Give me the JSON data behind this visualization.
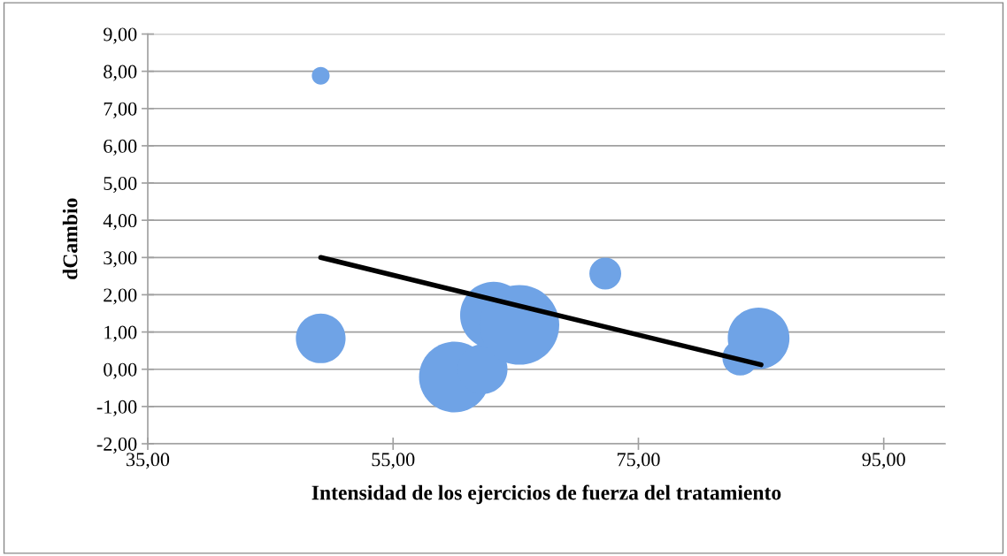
{
  "chart_data": {
    "type": "bubble",
    "xlabel": "Intensidad de los ejercicios de fuerza del tratamiento",
    "ylabel": "dCambio",
    "xlim": [
      35,
      100
    ],
    "ylim": [
      -2,
      9
    ],
    "grid": "y",
    "legend": false,
    "xticks": [
      {
        "value": 35,
        "label": "35,00"
      },
      {
        "value": 55,
        "label": "55,00"
      },
      {
        "value": 75,
        "label": "75,00"
      },
      {
        "value": 95,
        "label": "95,00"
      }
    ],
    "yticks": [
      {
        "value": -2,
        "label": "-2,00"
      },
      {
        "value": -1,
        "label": "-1,00"
      },
      {
        "value": 0,
        "label": "0,00"
      },
      {
        "value": 1,
        "label": "1,00"
      },
      {
        "value": 2,
        "label": "2,00"
      },
      {
        "value": 3,
        "label": "3,00"
      },
      {
        "value": 4,
        "label": "4,00"
      },
      {
        "value": 5,
        "label": "5,00"
      },
      {
        "value": 6,
        "label": "6,00"
      },
      {
        "value": 7,
        "label": "7,00"
      },
      {
        "value": 8,
        "label": "8,00"
      },
      {
        "value": 9,
        "label": "9,00"
      }
    ],
    "series": [
      {
        "color": "#6fa3e6",
        "x": [
          49.1,
          49.1,
          60.0,
          62.3,
          63.2,
          65.3,
          72.3,
          83.3,
          84.8
        ],
        "values": [
          7.88,
          0.83,
          -0.21,
          0.0,
          1.45,
          1.19,
          2.57,
          0.31,
          0.83
        ],
        "sizes": [
          0.05,
          0.39,
          0.79,
          0.39,
          0.71,
          1,
          0.16,
          0.2,
          0.6
        ]
      },
      {
        "type": "line",
        "color": "#000000",
        "x": [
          49.1,
          85.0
        ],
        "values": [
          3.0,
          0.12
        ]
      }
    ]
  }
}
